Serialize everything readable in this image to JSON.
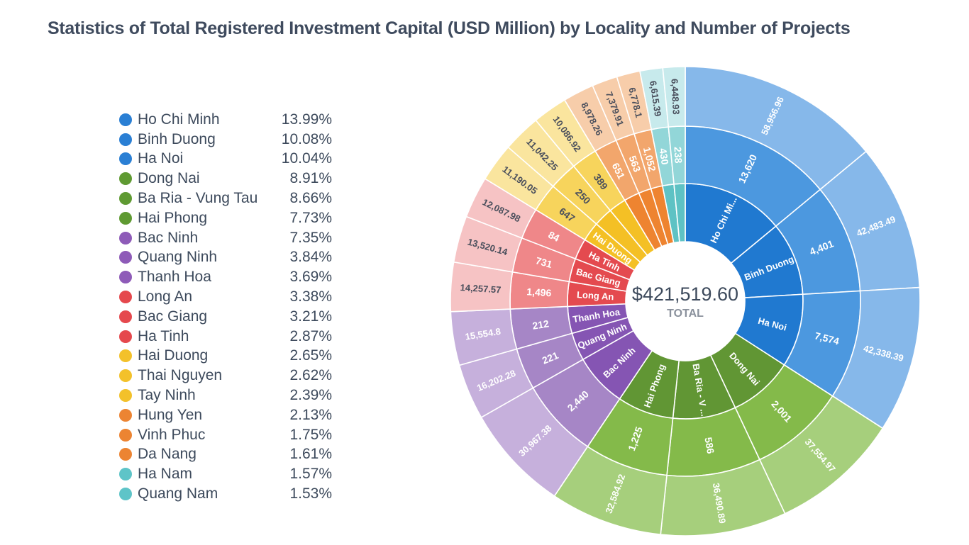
{
  "chart_data": {
    "type": "sunburst",
    "title": "Statistics of Total Registered Investment Capital (USD Million) by Locality and Number of Projects",
    "center": {
      "value": "$421,519.60",
      "label": "TOTAL"
    },
    "rings": [
      "locality",
      "projects",
      "capital_usd_million"
    ],
    "legend_position": "left",
    "items": [
      {
        "name": "Ho Chi Minh",
        "short": "Ho Chi Mi...",
        "percent": "13.99%",
        "projects": "13,620",
        "capital": 58956.96,
        "capital_label": "58,956.96",
        "group": "blue"
      },
      {
        "name": "Binh Duong",
        "short": "Binh Duong",
        "percent": "10.08%",
        "projects": "4,401",
        "capital": 42483.49,
        "capital_label": "42,483.49",
        "group": "blue"
      },
      {
        "name": "Ha Noi",
        "short": "Ha Noi",
        "percent": "10.04%",
        "projects": "7,574",
        "capital": 42338.39,
        "capital_label": "42,338.39",
        "group": "blue"
      },
      {
        "name": "Dong Nai",
        "short": "Dong Nai",
        "percent": "8.91%",
        "projects": "2,001",
        "capital": 37554.97,
        "capital_label": "37,554.97",
        "group": "green"
      },
      {
        "name": "Ba Ria - Vung Tau",
        "short": "Ba Ria - V ...",
        "percent": "8.66%",
        "projects": "586",
        "capital": 36490.89,
        "capital_label": "36,490.89",
        "group": "green"
      },
      {
        "name": "Hai Phong",
        "short": "Hai Phong",
        "percent": "7.73%",
        "projects": "1,225",
        "capital": 32584.92,
        "capital_label": "32,584.92",
        "group": "green"
      },
      {
        "name": "Bac Ninh",
        "short": "Bac Ninh",
        "percent": "7.35%",
        "projects": "2,440",
        "capital": 30967.38,
        "capital_label": "30,967.38",
        "group": "purple"
      },
      {
        "name": "Quang Ninh",
        "short": "Quang Ninh",
        "percent": "3.84%",
        "projects": "221",
        "capital": 16202.28,
        "capital_label": "16,202.28",
        "group": "purple"
      },
      {
        "name": "Thanh Hoa",
        "short": "Thanh Hoa",
        "percent": "3.69%",
        "projects": "212",
        "capital": 15554.8,
        "capital_label": "15,554.8",
        "group": "purple"
      },
      {
        "name": "Long An",
        "short": "Long An",
        "percent": "3.38%",
        "projects": "1,496",
        "capital": 14257.57,
        "capital_label": "14,257.57",
        "group": "red"
      },
      {
        "name": "Bac Giang",
        "short": "Bac Giang",
        "percent": "3.21%",
        "projects": "731",
        "capital": 13520.14,
        "capital_label": "13,520.14",
        "group": "red"
      },
      {
        "name": "Ha Tinh",
        "short": "Ha Tinh",
        "percent": "2.87%",
        "projects": "84",
        "capital": 12087.98,
        "capital_label": "12,087.98",
        "group": "red"
      },
      {
        "name": "Hai Duong",
        "short": "Hai Duong",
        "percent": "2.65%",
        "projects": "647",
        "capital": 11190.05,
        "capital_label": "11,190.05",
        "group": "yellow"
      },
      {
        "name": "Thai Nguyen",
        "short": "",
        "percent": "2.62%",
        "projects": "250",
        "capital": 11042.25,
        "capital_label": "11,042.25",
        "group": "yellow"
      },
      {
        "name": "Tay Ninh",
        "short": "",
        "percent": "2.39%",
        "projects": "389",
        "capital": 10086.92,
        "capital_label": "10,086.92",
        "group": "yellow"
      },
      {
        "name": "Hung Yen",
        "short": "",
        "percent": "2.13%",
        "projects": "651",
        "capital": 8978.26,
        "capital_label": "8,978.26",
        "group": "orange"
      },
      {
        "name": "Vinh Phuc",
        "short": "",
        "percent": "1.75%",
        "projects": "563",
        "capital": 7379.91,
        "capital_label": "7,379.91",
        "group": "orange"
      },
      {
        "name": "Da Nang",
        "short": "",
        "percent": "1.61%",
        "projects": "1,052",
        "capital": 6778.1,
        "capital_label": "6,778.1",
        "group": "orange"
      },
      {
        "name": "Ha Nam",
        "short": "",
        "percent": "1.57%",
        "projects": "430",
        "capital": 6615.39,
        "capital_label": "6,615.39",
        "group": "teal"
      },
      {
        "name": "Quang Nam",
        "short": "",
        "percent": "1.53%",
        "projects": "238",
        "capital": 6448.93,
        "capital_label": "6,448.93",
        "group": "teal"
      }
    ]
  },
  "palette": {
    "blue": {
      "dot": "#2a7fd4",
      "inner": "#2079d0",
      "mid": "#4c98df",
      "outer": "#86b8ea",
      "mid_text": "#ffffff",
      "outer_text": "#ffffff"
    },
    "green": {
      "dot": "#5f9a32",
      "inner": "#619634",
      "mid": "#84ba4a",
      "outer": "#a6cf7c",
      "mid_text": "#ffffff",
      "outer_text": "#ffffff"
    },
    "purple": {
      "dot": "#8e5bb8",
      "inner": "#8555b3",
      "mid": "#a686c6",
      "outer": "#c6b0dc",
      "mid_text": "#ffffff",
      "outer_text": "#ffffff"
    },
    "red": {
      "dot": "#e5484d",
      "inner": "#e44a4f",
      "mid": "#ef8789",
      "outer": "#f6c3c4",
      "mid_text": "#ffffff",
      "outer_text": "#4a4f5c"
    },
    "yellow": {
      "dot": "#f3c12a",
      "inner": "#f4c025",
      "mid": "#f7d45c",
      "outer": "#fae59e",
      "mid_text": "#4a4f5c",
      "outer_text": "#4a4f5c"
    },
    "orange": {
      "dot": "#ec8432",
      "inner": "#ee8430",
      "mid": "#f2a66c",
      "outer": "#f7cdaa",
      "mid_text": "#ffffff",
      "outer_text": "#4a4f5c"
    },
    "teal": {
      "dot": "#5ec4c8",
      "inner": "#5ec2c4",
      "mid": "#92d6d8",
      "outer": "#c7eaec",
      "mid_text": "#ffffff",
      "outer_text": "#4a4f5c"
    }
  }
}
